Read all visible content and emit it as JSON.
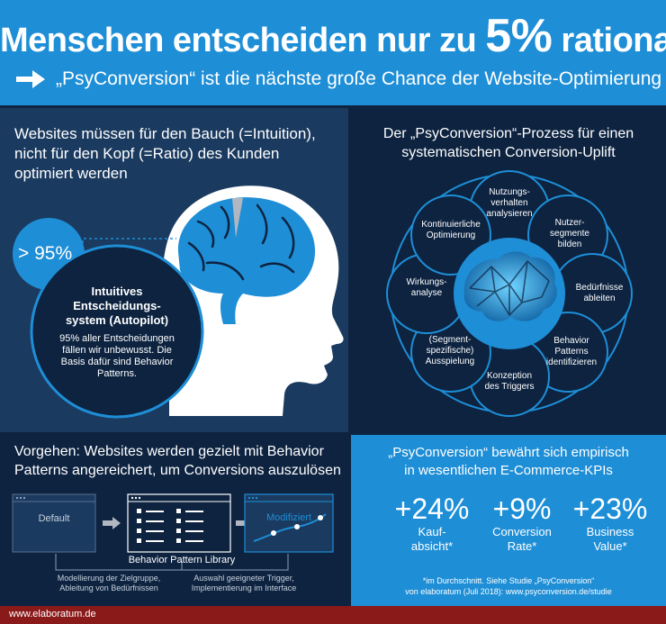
{
  "colors": {
    "brand_blue": "#1e8ed6",
    "navy": "#0d2340",
    "panel": "#1a3a5f",
    "footer": "#8a1a1a",
    "grey": "#b0b7c0"
  },
  "header": {
    "title_part1": "Menschen entscheiden nur zu ",
    "title_percent": "5%",
    "title_part2": " rational",
    "subtitle": "„PsyConversion“ ist die nächste große Chance der Website-Optimierung",
    "arrow_icon": "arrow-right-icon"
  },
  "intuition": {
    "heading_lines": [
      "Websites müssen für den Bauch (=Intuition),",
      "nicht für den Kopf (=Ratio) des Kunden",
      "optimiert werden"
    ],
    "stat": "> 95%",
    "system_title_lines": [
      "Intuitives",
      "Entscheidungs-",
      "system (Autopilot)"
    ],
    "system_desc_lines": [
      "95% aller Entscheidungen",
      "fällen wir unbewusst. Die",
      "Basis dafür sind Behavior",
      "Patterns."
    ],
    "head_icon": "head-brain-icon"
  },
  "process": {
    "heading_lines": [
      "Der „PsyConversion“-Prozess für einen",
      "systematischen Conversion-Uplift"
    ],
    "steps": [
      {
        "lines": [
          "Nutzungs-",
          "verhalten",
          "analysieren"
        ]
      },
      {
        "lines": [
          "Nutzer-",
          "segmente",
          "bilden"
        ]
      },
      {
        "lines": [
          "Bedürfnisse",
          "ableiten"
        ]
      },
      {
        "lines": [
          "Behavior",
          "Patterns",
          "identifizieren"
        ]
      },
      {
        "lines": [
          "Konzeption",
          "des Triggers"
        ]
      },
      {
        "lines": [
          "(Segment-",
          "spezifische)",
          "Ausspielung"
        ]
      },
      {
        "lines": [
          "Wirkungs-",
          "analyse"
        ]
      },
      {
        "lines": [
          "Kontinuierliche",
          "Optimierung"
        ]
      }
    ],
    "center_icon": "brain-network-icon"
  },
  "approach": {
    "heading_lines": [
      "Vorgehen: Websites werden gezielt mit Behavior",
      "Patterns angereichert, um Conversions auszulösen"
    ],
    "default_label": "Default",
    "library_label": "Behavior Pattern Library",
    "modified_label": "Modifiziert",
    "note_left_lines": [
      "Modellierung der Zielgruppe,",
      "Ableitung von Bedürfnissen"
    ],
    "note_right_lines": [
      "Auswahl geeigneter Trigger,",
      "Implementierung im Interface"
    ]
  },
  "kpis": {
    "heading_lines": [
      "„PsyConversion“ bewährt sich empirisch",
      "in wesentlichen E-Commerce-KPIs"
    ],
    "items": [
      {
        "value": "+24%",
        "label_lines": [
          "Kauf-",
          "absicht*"
        ]
      },
      {
        "value": "+9%",
        "label_lines": [
          "Conversion",
          "Rate*"
        ]
      },
      {
        "value": "+23%",
        "label_lines": [
          "Business",
          "Value*"
        ]
      }
    ],
    "footnote_lines": [
      "*im Durchschnitt. Siehe Studie „PsyConversion“",
      "von elaboratum (Juli 2018): www.psyconversion.de/studie"
    ]
  },
  "footer": {
    "site": "www.elaboratum.de"
  }
}
